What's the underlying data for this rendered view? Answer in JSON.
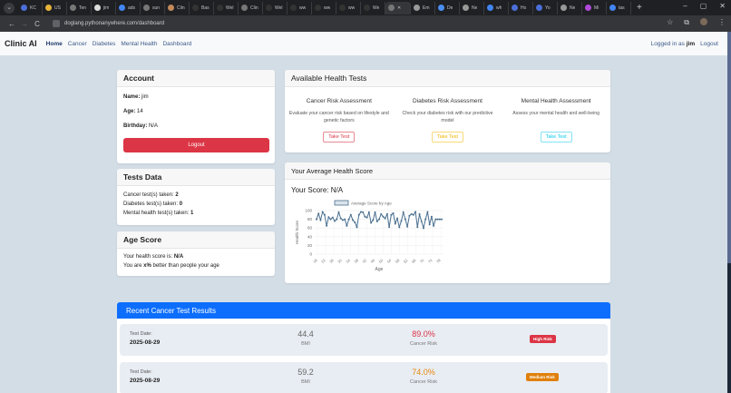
{
  "browser": {
    "tabs": [
      {
        "label": "KC",
        "fav_color": "#4a6fd8"
      },
      {
        "label": "US",
        "fav_color": "#e8b33a"
      },
      {
        "label": "Ten",
        "fav_color": "#777"
      },
      {
        "label": "jim",
        "fav_color": "#ddd"
      },
      {
        "label": "ads",
        "fav_color": "#4285f4"
      },
      {
        "label": "sun",
        "fav_color": "#777"
      },
      {
        "label": "Clin",
        "fav_color": "#c48a5a"
      },
      {
        "label": "Bas",
        "fav_color": "#333"
      },
      {
        "label": "Wel",
        "fav_color": "#333"
      },
      {
        "label": "Clin",
        "fav_color": "#777"
      },
      {
        "label": "Wel",
        "fav_color": "#333"
      },
      {
        "label": "ww",
        "fav_color": "#333"
      },
      {
        "label": "ww",
        "fav_color": "#333"
      },
      {
        "label": "ww",
        "fav_color": "#333"
      },
      {
        "label": "We",
        "fav_color": "#333"
      },
      {
        "label": "",
        "fav_color": "#777",
        "active": true
      },
      {
        "label": "Em",
        "fav_color": "#999"
      },
      {
        "label": "De",
        "fav_color": "#4a8ff0"
      },
      {
        "label": "Ne",
        "fav_color": "#999"
      },
      {
        "label": "wh",
        "fav_color": "#4285f4"
      },
      {
        "label": "Ho",
        "fav_color": "#4a6fd8"
      },
      {
        "label": "Yo",
        "fav_color": "#4a6fd8"
      },
      {
        "label": "Ne",
        "fav_color": "#999"
      },
      {
        "label": "Mi",
        "fav_color": "#b04ad8"
      },
      {
        "label": "tas",
        "fav_color": "#4285f4"
      }
    ],
    "url": "doglang.pythonanywhere.com/dashboard",
    "icons": {
      "back": "←",
      "forward": "→",
      "reload": "C",
      "star": "☆",
      "extensions": "⧉",
      "menu": "⋮",
      "new_tab": "+",
      "minimize": "–",
      "maximize": "▢",
      "close": "✕"
    }
  },
  "nav": {
    "brand": "Clinic AI",
    "links": [
      "Home",
      "Cancer",
      "Diabetes",
      "Mental Health",
      "Dashboard"
    ],
    "logged_in_prefix": "Logged in as",
    "username": "jim",
    "logout": "Logout"
  },
  "account": {
    "title": "Account",
    "name_label": "Name:",
    "name": "jim",
    "age_label": "Age:",
    "age": "14",
    "birthday_label": "Birthday:",
    "birthday": "N/A",
    "logout_button": "Logout"
  },
  "tests_data": {
    "title": "Tests Data",
    "cancer_label": "Cancer test(s) taken:",
    "cancer": "2",
    "diabetes_label": "Diabetes test(s) taken:",
    "diabetes": "0",
    "mental_label": "Mental health test(s) taken:",
    "mental": "1"
  },
  "age_score": {
    "title": "Age Score",
    "line1_prefix": "Your health score is:",
    "line1_value": "N/A",
    "line2_prefix": "You are",
    "line2_value": "x%",
    "line2_suffix": "better than people your age"
  },
  "available_tests": {
    "title": "Available Health Tests",
    "items": [
      {
        "title": "Cancer Risk Assessment",
        "desc": "Evaluate your cancer risk based on lifestyle and genetic factors",
        "button": "Take Test",
        "color": "#dc3545"
      },
      {
        "title": "Diabetes Risk Assessment",
        "desc": "Check your diabetes risk with our predictive model",
        "button": "Take Test",
        "color": "#ffc107"
      },
      {
        "title": "Mental Health Assessment",
        "desc": "Assess your mental health and well-being",
        "button": "Take Test",
        "color": "#0dcaf0"
      }
    ]
  },
  "health_score": {
    "title": "Your Average Health Score",
    "score_label": "Your Score:",
    "score": "N/A"
  },
  "chart_data": {
    "type": "line",
    "title": "",
    "legend": [
      "Average Score by Age"
    ],
    "legend_position": "top",
    "xlabel": "Age",
    "ylabel": "Health Score",
    "ylim": [
      0,
      100
    ],
    "yticks": [
      0,
      20,
      40,
      60,
      80,
      100
    ],
    "grid": true,
    "x_tick_labels": [
      "18",
      "22",
      "26",
      "30",
      "34",
      "38",
      "42",
      "46",
      "50",
      "54",
      "58",
      "62",
      "66",
      "70",
      "74",
      "78"
    ],
    "x": [
      18,
      19,
      20,
      21,
      22,
      23,
      24,
      25,
      26,
      27,
      28,
      29,
      30,
      31,
      32,
      33,
      34,
      35,
      36,
      37,
      38,
      39,
      40,
      41,
      42,
      43,
      44,
      45,
      46,
      47,
      48,
      49,
      50,
      51,
      52,
      53,
      54,
      55,
      56,
      57,
      58,
      59,
      60,
      61,
      62,
      63,
      64,
      65,
      66,
      67,
      68,
      69,
      70,
      71,
      72,
      73,
      74,
      75,
      76,
      77,
      78,
      79,
      80
    ],
    "series": [
      {
        "name": "Average Score by Age",
        "color": "#4a6f8f",
        "values": [
          80,
          93,
          78,
          97,
          90,
          65,
          85,
          80,
          84,
          76,
          80,
          96,
          82,
          78,
          80,
          65,
          80,
          90,
          78,
          73,
          62,
          90,
          97,
          96,
          86,
          84,
          96,
          72,
          78,
          96,
          75,
          80,
          92,
          86,
          82,
          92,
          62,
          90,
          94,
          70,
          82,
          62,
          76,
          96,
          80,
          63,
          88,
          92,
          90,
          97,
          62,
          92,
          75,
          60,
          80,
          97,
          68,
          86,
          65,
          80,
          80,
          80,
          80
        ]
      }
    ]
  },
  "recent": {
    "title": "Recent Cancer Test Results",
    "rows": [
      {
        "date_label": "Test Date:",
        "date": "2025-08-29",
        "bmi": "44.4",
        "bmi_label": "BMI",
        "risk": "89.0%",
        "risk_label": "Cancer Risk",
        "risk_color": "#dc3545",
        "badge": "High Risk",
        "badge_color": "#dc3545"
      },
      {
        "date_label": "Test Date:",
        "date": "2025-08-29",
        "bmi": "59.2",
        "bmi_label": "BMI",
        "risk": "74.0%",
        "risk_label": "Cancer Risk",
        "risk_color": "#e8860c",
        "badge": "Medium Risk",
        "badge_color": "#e0800c"
      }
    ]
  }
}
